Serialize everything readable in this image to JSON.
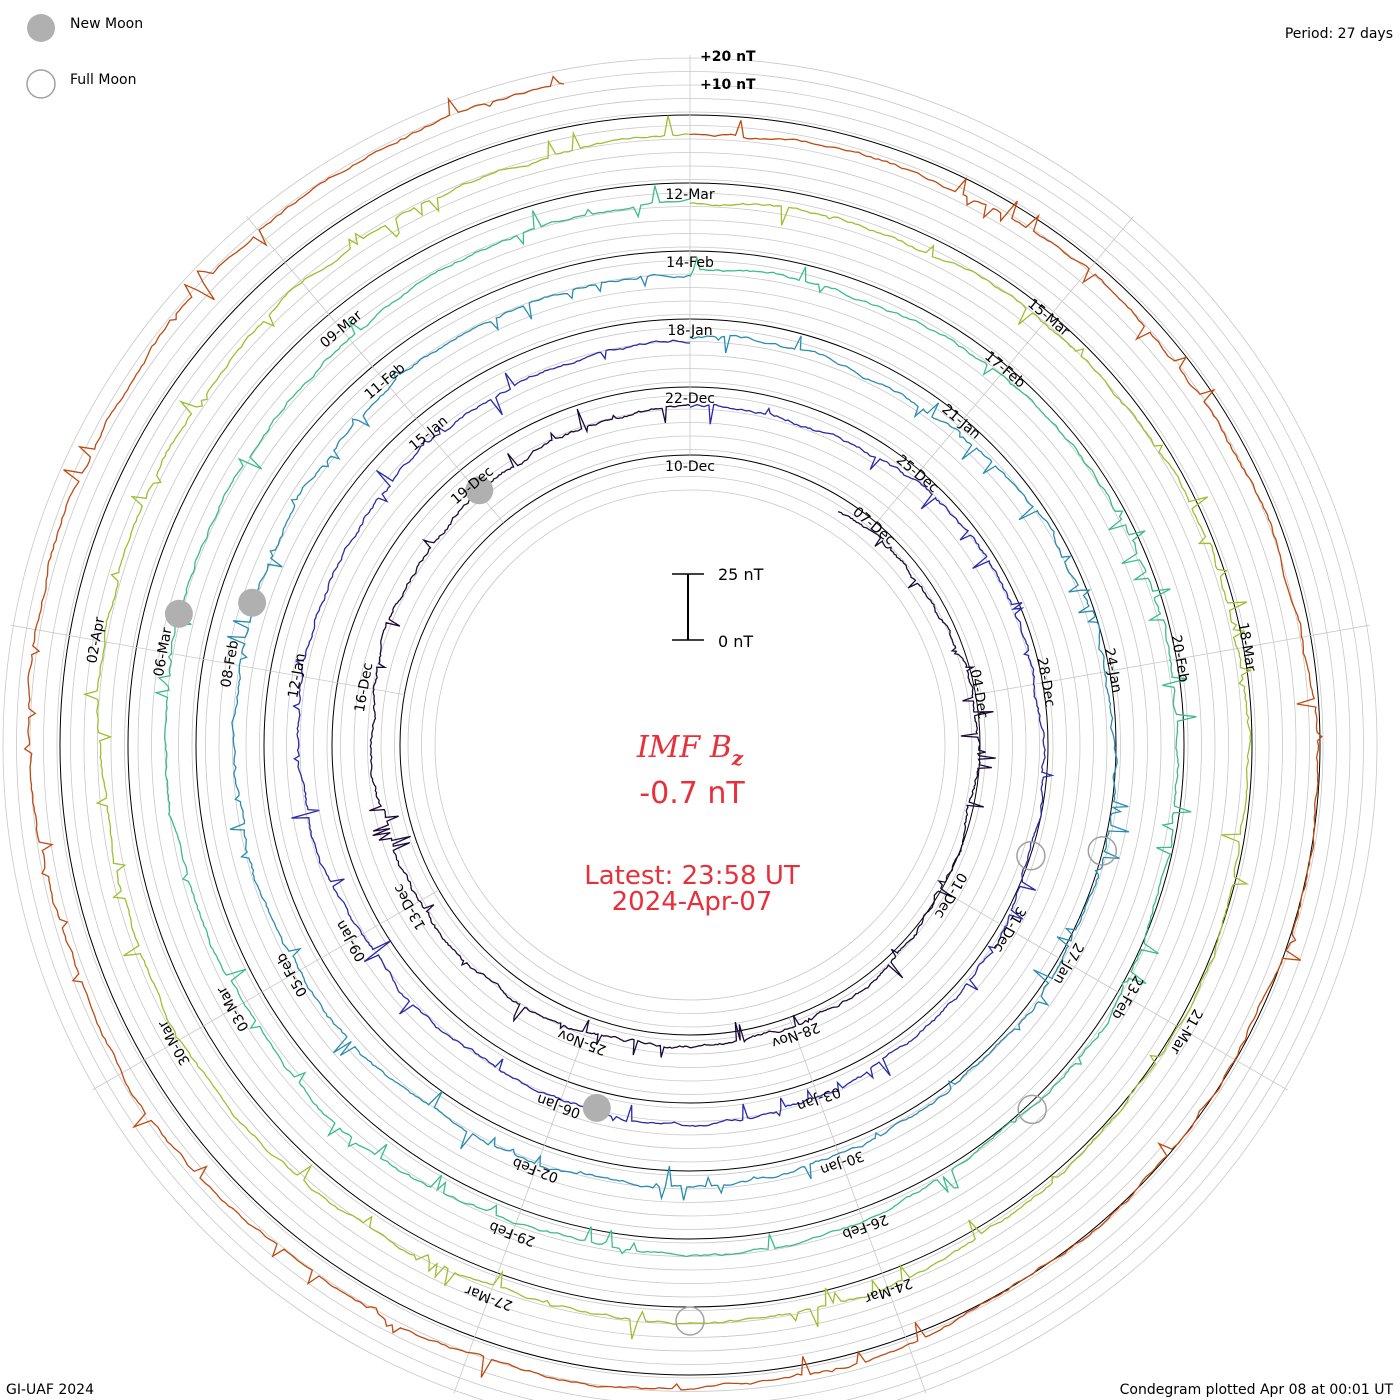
{
  "legend": {
    "new_moon": "New Moon",
    "full_moon": "Full Moon",
    "new_moon_color": "#b0b0b0",
    "full_moon_color": "#a0a0a0"
  },
  "period": "Period: 27 days",
  "footer": {
    "left": "GI-UAF 2024",
    "right": "Condegram plotted Apr 08 at 00:01 UT"
  },
  "scale": {
    "top_labels": [
      "+20 nT",
      "+10 nT"
    ],
    "bar_top": "25 nT",
    "bar_bottom": "0 nT"
  },
  "center": {
    "title": "IMF B",
    "subscript": "z",
    "value": "-0.7 nT",
    "latest": "Latest: 23:58 UT",
    "date": "2024-Apr-07",
    "color": "#e8303a"
  },
  "chart_data": {
    "type": "condegram",
    "title": "IMF Bz",
    "units": "nT",
    "period_days": 27,
    "latest_value": -0.7,
    "latest_time": "2024-Apr-07 23:58 UT",
    "cycles": [
      {
        "index": 0,
        "color": "#1a0a3a",
        "date_labels": [
          "10-Dec",
          "07-Dec",
          "04-Dec",
          "01-Dec",
          "28-Nov",
          "25-Nov",
          "13-Dec",
          "16-Dec",
          "19-Dec"
        ]
      },
      {
        "index": 1,
        "color": "#2a2aa8",
        "date_labels": [
          "22-Dec",
          "25-Dec",
          "28-Dec",
          "31-Dec",
          "03-Jan",
          "06-Jan",
          "09-Jan",
          "12-Jan",
          "15-Jan"
        ]
      },
      {
        "index": 2,
        "color": "#2a8cb0",
        "date_labels": [
          "18-Jan",
          "21-Jan",
          "24-Jan",
          "27-Jan",
          "30-Jan",
          "02-Feb",
          "05-Feb",
          "08-Feb",
          "11-Feb"
        ]
      },
      {
        "index": 3,
        "color": "#3cbc8a",
        "date_labels": [
          "14-Feb",
          "17-Feb",
          "20-Feb",
          "23-Feb",
          "26-Feb",
          "29-Feb",
          "03-Mar",
          "06-Mar",
          "09-Mar"
        ]
      },
      {
        "index": 4,
        "color": "#9cc030",
        "date_labels": [
          "12-Mar",
          "15-Mar",
          "18-Mar",
          "21-Mar",
          "24-Mar",
          "27-Mar",
          "30-Mar",
          "02-Apr"
        ]
      },
      {
        "index": 5,
        "color": "#c04a10",
        "date_labels": []
      }
    ],
    "moon_markers": {
      "new_moon_dates": [
        "11-Jan",
        "09-Feb",
        "10-Mar",
        "12-Dec"
      ],
      "full_moon_dates": [
        "26-Dec",
        "25-Jan",
        "24-Feb",
        "25-Mar"
      ]
    }
  }
}
